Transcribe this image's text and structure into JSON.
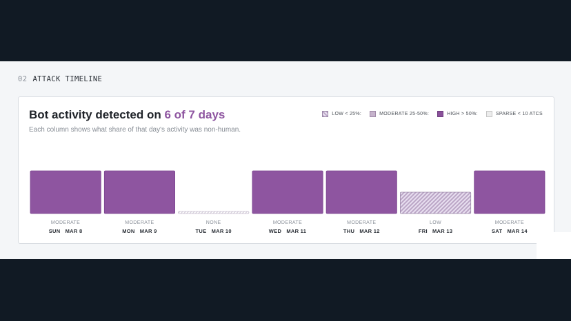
{
  "section": {
    "number": "02",
    "label": "ATTACK TIMELINE"
  },
  "card": {
    "title_prefix": "Bot activity detected on ",
    "title_highlight": "6 of 7 days",
    "subtitle": "Each column shows what share of that day's activity was non-human."
  },
  "legend": [
    {
      "key": "low",
      "label": "LOW < 25%:"
    },
    {
      "key": "moderate",
      "label": "MODERATE 25-50%:"
    },
    {
      "key": "high",
      "label": "HIGH > 50%:"
    },
    {
      "key": "sparse",
      "label": "SPARSE < 10 ATCS"
    }
  ],
  "colors": {
    "high": "#8e55a0",
    "moderate": "#c6b3cc",
    "low_hatch_dark": "#bba6c6",
    "low_hatch_light": "#e8dff0",
    "none_hatch": "#d9d3de",
    "accent": "#8e55a0"
  },
  "chart_data": {
    "type": "bar",
    "categories": [
      "SUN MAR 8",
      "MON MAR 9",
      "TUE MAR 10",
      "WED MAR 11",
      "THU MAR 12",
      "FRI MAR 13",
      "SAT MAR 14"
    ],
    "days": [
      {
        "day": "SUN",
        "date": "MAR 8",
        "level": "MODERATE",
        "style": "high",
        "value": 1.0
      },
      {
        "day": "MON",
        "date": "MAR 9",
        "level": "MODERATE",
        "style": "high",
        "value": 1.0
      },
      {
        "day": "TUE",
        "date": "MAR 10",
        "level": "NONE",
        "style": "none",
        "value": 0.05
      },
      {
        "day": "WED",
        "date": "MAR 11",
        "level": "MODERATE",
        "style": "high",
        "value": 1.0
      },
      {
        "day": "THU",
        "date": "MAR 12",
        "level": "MODERATE",
        "style": "high",
        "value": 1.0
      },
      {
        "day": "FRI",
        "date": "MAR 13",
        "level": "LOW",
        "style": "low",
        "value": 0.5
      },
      {
        "day": "SAT",
        "date": "MAR 14",
        "level": "MODERATE",
        "style": "high",
        "value": 1.0
      }
    ],
    "ylim": [
      0,
      1
    ],
    "grid": false
  }
}
